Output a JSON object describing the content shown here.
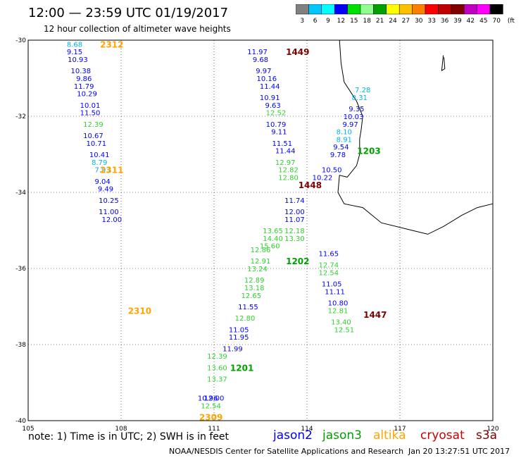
{
  "header": {
    "title": "12:00 — 23:59 UTC 01/19/2017",
    "subtitle": "12 hour collection of altimeter wave heights"
  },
  "colorbar": {
    "labels": [
      "3",
      "6",
      "9",
      "12",
      "15",
      "18",
      "21",
      "24",
      "27",
      "30",
      "33",
      "36",
      "39",
      "42",
      "45",
      "70",
      "(ft)"
    ],
    "colors": [
      "#808080",
      "#00c8ff",
      "#00ffff",
      "#0000ff",
      "#00e000",
      "#90ff90",
      "#00a000",
      "#ffff00",
      "#ffc000",
      "#ff8000",
      "#ff0000",
      "#c00000",
      "#800000",
      "#c000c0",
      "#ff00ff",
      "#000000"
    ]
  },
  "footer": {
    "note": "note: 1) Time is in UTC; 2) SWH is in feet",
    "legend": [
      {
        "name": "jason2",
        "color": "#0000ff"
      },
      {
        "name": "jason3",
        "color": "#00a000"
      },
      {
        "name": "altika",
        "color": "#ffa500"
      },
      {
        "name": "cryosat",
        "color": "#cc0000"
      },
      {
        "name": "s3a",
        "color": "#800000"
      }
    ],
    "credit": "NOAA/NESDIS Center for Satellite Applications and Research",
    "timestamp": "Jan 20 13:27:51 UTC 2017"
  },
  "chart_data": {
    "type": "scatter",
    "xlim": [
      105,
      120
    ],
    "ylim": [
      -40,
      -30
    ],
    "x_ticks": [
      "105",
      "108",
      "111",
      "114",
      "117",
      "120"
    ],
    "y_ticks": [
      "-30",
      "-32",
      "-34",
      "-36",
      "-38",
      "-40"
    ],
    "grid": true,
    "tracks": [
      {
        "satellite": "altika",
        "color": "#ffa500",
        "times": [
          {
            "label": "2312",
            "x": 107.7,
            "y": -30.1
          },
          {
            "label": "2311",
            "x": 107.7,
            "y": -33.4
          },
          {
            "label": "2310",
            "x": 108.6,
            "y": -37.1
          },
          {
            "label": "2309",
            "x": 110.9,
            "y": -39.9
          }
        ],
        "points": [
          {
            "v": "8.68",
            "x": 106.5,
            "y": -30.1,
            "c": "#00b4e0"
          },
          {
            "v": "9.15",
            "x": 106.5,
            "y": -30.3,
            "c": "#0000ff"
          },
          {
            "v": "10.93",
            "x": 106.6,
            "y": -30.5,
            "c": "#0000ff"
          },
          {
            "v": "10.38",
            "x": 106.7,
            "y": -30.8,
            "c": "#0000ff"
          },
          {
            "v": "9.86",
            "x": 106.8,
            "y": -31.0,
            "c": "#0000ff"
          },
          {
            "v": "11.79",
            "x": 106.8,
            "y": -31.2,
            "c": "#0000ff"
          },
          {
            "v": "10.29",
            "x": 106.9,
            "y": -31.4,
            "c": "#0000ff"
          },
          {
            "v": "10.01",
            "x": 107.0,
            "y": -31.7,
            "c": "#0000ff"
          },
          {
            "v": "11.50",
            "x": 107.0,
            "y": -31.9,
            "c": "#0000ff"
          },
          {
            "v": "12.39",
            "x": 107.1,
            "y": -32.2,
            "c": "#30d030"
          },
          {
            "v": "10.67",
            "x": 107.1,
            "y": -32.5,
            "c": "#0000ff"
          },
          {
            "v": "10.71",
            "x": 107.2,
            "y": -32.7,
            "c": "#0000ff"
          },
          {
            "v": "10.41",
            "x": 107.3,
            "y": -33.0,
            "c": "#0000ff"
          },
          {
            "v": "8.79",
            "x": 107.3,
            "y": -33.2,
            "c": "#00b4e0"
          },
          {
            "v": "7.93",
            "x": 107.4,
            "y": -33.4,
            "c": "#00b4e0"
          },
          {
            "v": "9.04",
            "x": 107.4,
            "y": -33.7,
            "c": "#0000ff"
          },
          {
            "v": "9.49",
            "x": 107.5,
            "y": -33.9,
            "c": "#0000ff"
          },
          {
            "v": "10.25",
            "x": 107.6,
            "y": -34.2,
            "c": "#0000ff"
          },
          {
            "v": "11.00",
            "x": 107.6,
            "y": -34.5,
            "c": "#0000ff"
          },
          {
            "v": "12.00",
            "x": 107.7,
            "y": -34.7,
            "c": "#0000ff"
          }
        ]
      },
      {
        "satellite": "jason3",
        "color": "#00a000",
        "times": [
          {
            "label": "1203",
            "x": 116.0,
            "y": -32.9
          },
          {
            "label": "1202",
            "x": 113.7,
            "y": -35.8
          },
          {
            "label": "1201",
            "x": 111.9,
            "y": -38.6
          }
        ],
        "points": [
          {
            "v": "12.00",
            "x": 111.0,
            "y": -39.4,
            "c": "#0000ff"
          },
          {
            "v": "12.54",
            "x": 110.9,
            "y": -39.6,
            "c": "#30d030"
          },
          {
            "v": "10.96",
            "x": 110.8,
            "y": -39.4,
            "c": "#0000ff"
          },
          {
            "v": "12.39",
            "x": 111.1,
            "y": -38.3,
            "c": "#30d030"
          },
          {
            "v": "13.60",
            "x": 111.1,
            "y": -38.6,
            "c": "#30d030"
          },
          {
            "v": "13.37",
            "x": 111.1,
            "y": -38.9,
            "c": "#30d030"
          },
          {
            "v": "11.99",
            "x": 111.6,
            "y": -38.1,
            "c": "#0000ff"
          },
          {
            "v": "11.95",
            "x": 111.8,
            "y": -37.8,
            "c": "#0000ff"
          },
          {
            "v": "11.05",
            "x": 111.8,
            "y": -37.6,
            "c": "#0000ff"
          },
          {
            "v": "12.80",
            "x": 112.0,
            "y": -37.3,
            "c": "#30d030"
          },
          {
            "v": "11.55",
            "x": 112.1,
            "y": -37.0,
            "c": "#0000ff"
          },
          {
            "v": "12.65",
            "x": 112.2,
            "y": -36.7,
            "c": "#30d030"
          },
          {
            "v": "13.18",
            "x": 112.3,
            "y": -36.5,
            "c": "#30d030"
          },
          {
            "v": "12.89",
            "x": 112.3,
            "y": -36.3,
            "c": "#30d030"
          },
          {
            "v": "13.24",
            "x": 112.4,
            "y": -36.0,
            "c": "#30d030"
          },
          {
            "v": "12.91",
            "x": 112.5,
            "y": -35.8,
            "c": "#30d030"
          },
          {
            "v": "12.86",
            "x": 112.5,
            "y": -35.5,
            "c": "#30d030"
          },
          {
            "v": "15.60",
            "x": 112.8,
            "y": -35.4,
            "c": "#30d030"
          },
          {
            "v": "14.40",
            "x": 112.9,
            "y": -35.2,
            "c": "#30d030"
          },
          {
            "v": "13.65",
            "x": 112.9,
            "y": -35.0,
            "c": "#30d030"
          }
        ]
      },
      {
        "satellite": "s3a",
        "color": "#800000",
        "times": [
          {
            "label": "1449",
            "x": 113.7,
            "y": -30.3
          },
          {
            "label": "1448",
            "x": 114.1,
            "y": -33.8
          },
          {
            "label": "1447",
            "x": 116.2,
            "y": -37.2
          }
        ],
        "points": [
          {
            "v": "11.97",
            "x": 112.4,
            "y": -30.3,
            "c": "#0000ff"
          },
          {
            "v": "9.68",
            "x": 112.5,
            "y": -30.5,
            "c": "#0000ff"
          },
          {
            "v": "9.97",
            "x": 112.6,
            "y": -30.8,
            "c": "#0000ff"
          },
          {
            "v": "10.16",
            "x": 112.7,
            "y": -31.0,
            "c": "#0000ff"
          },
          {
            "v": "11.44",
            "x": 112.8,
            "y": -31.2,
            "c": "#0000ff"
          },
          {
            "v": "10.91",
            "x": 112.8,
            "y": -31.5,
            "c": "#0000ff"
          },
          {
            "v": "9.63",
            "x": 112.9,
            "y": -31.7,
            "c": "#0000ff"
          },
          {
            "v": "12.52",
            "x": 113.0,
            "y": -31.9,
            "c": "#30d030"
          },
          {
            "v": "10.79",
            "x": 113.0,
            "y": -32.2,
            "c": "#0000ff"
          },
          {
            "v": "9.11",
            "x": 113.1,
            "y": -32.4,
            "c": "#0000ff"
          },
          {
            "v": "11.51",
            "x": 113.2,
            "y": -32.7,
            "c": "#0000ff"
          },
          {
            "v": "11.44",
            "x": 113.3,
            "y": -32.9,
            "c": "#0000ff"
          },
          {
            "v": "12.97",
            "x": 113.3,
            "y": -33.2,
            "c": "#30d030"
          },
          {
            "v": "12.82",
            "x": 113.4,
            "y": -33.4,
            "c": "#30d030"
          },
          {
            "v": "12.80",
            "x": 113.4,
            "y": -33.6,
            "c": "#30d030"
          },
          {
            "v": "11.74",
            "x": 113.6,
            "y": -34.2,
            "c": "#0000ff"
          },
          {
            "v": "12.00",
            "x": 113.6,
            "y": -34.5,
            "c": "#0000ff"
          },
          {
            "v": "11.07",
            "x": 113.6,
            "y": -34.7,
            "c": "#0000ff"
          },
          {
            "v": "12.18",
            "x": 113.6,
            "y": -35.0,
            "c": "#30d030"
          },
          {
            "v": "13.30",
            "x": 113.6,
            "y": -35.2,
            "c": "#30d030"
          }
        ]
      },
      {
        "satellite": "jason2",
        "color": "#0000ff",
        "times": [],
        "points": [
          {
            "v": "7.28",
            "x": 115.8,
            "y": -31.3,
            "c": "#00b4e0"
          },
          {
            "v": "8.31",
            "x": 115.7,
            "y": -31.5,
            "c": "#00b4e0"
          },
          {
            "v": "9.35",
            "x": 115.6,
            "y": -31.8,
            "c": "#0000ff"
          },
          {
            "v": "10.03",
            "x": 115.5,
            "y": -32.0,
            "c": "#0000ff"
          },
          {
            "v": "9.97",
            "x": 115.4,
            "y": -32.2,
            "c": "#0000ff"
          },
          {
            "v": "8.10",
            "x": 115.2,
            "y": -32.4,
            "c": "#00b4e0"
          },
          {
            "v": "8.91",
            "x": 115.2,
            "y": -32.6,
            "c": "#00b4e0"
          },
          {
            "v": "9.54",
            "x": 115.1,
            "y": -32.8,
            "c": "#0000ff"
          },
          {
            "v": "9.78",
            "x": 115.0,
            "y": -33.0,
            "c": "#0000ff"
          },
          {
            "v": "10.50",
            "x": 114.8,
            "y": -33.4,
            "c": "#0000ff"
          },
          {
            "v": "10.22",
            "x": 114.5,
            "y": -33.6,
            "c": "#0000ff"
          },
          {
            "v": "11.65",
            "x": 114.7,
            "y": -35.6,
            "c": "#0000ff"
          },
          {
            "v": "12.74",
            "x": 114.7,
            "y": -35.9,
            "c": "#30d030"
          },
          {
            "v": "12.54",
            "x": 114.7,
            "y": -36.1,
            "c": "#30d030"
          },
          {
            "v": "11.05",
            "x": 114.8,
            "y": -36.4,
            "c": "#0000ff"
          },
          {
            "v": "11.11",
            "x": 114.9,
            "y": -36.6,
            "c": "#0000ff"
          },
          {
            "v": "10.80",
            "x": 115.0,
            "y": -36.9,
            "c": "#0000ff"
          },
          {
            "v": "12.81",
            "x": 115.0,
            "y": -37.1,
            "c": "#30d030"
          },
          {
            "v": "13.40",
            "x": 115.1,
            "y": -37.4,
            "c": "#30d030"
          },
          {
            "v": "12.51",
            "x": 115.2,
            "y": -37.6,
            "c": "#30d030"
          }
        ]
      }
    ]
  }
}
